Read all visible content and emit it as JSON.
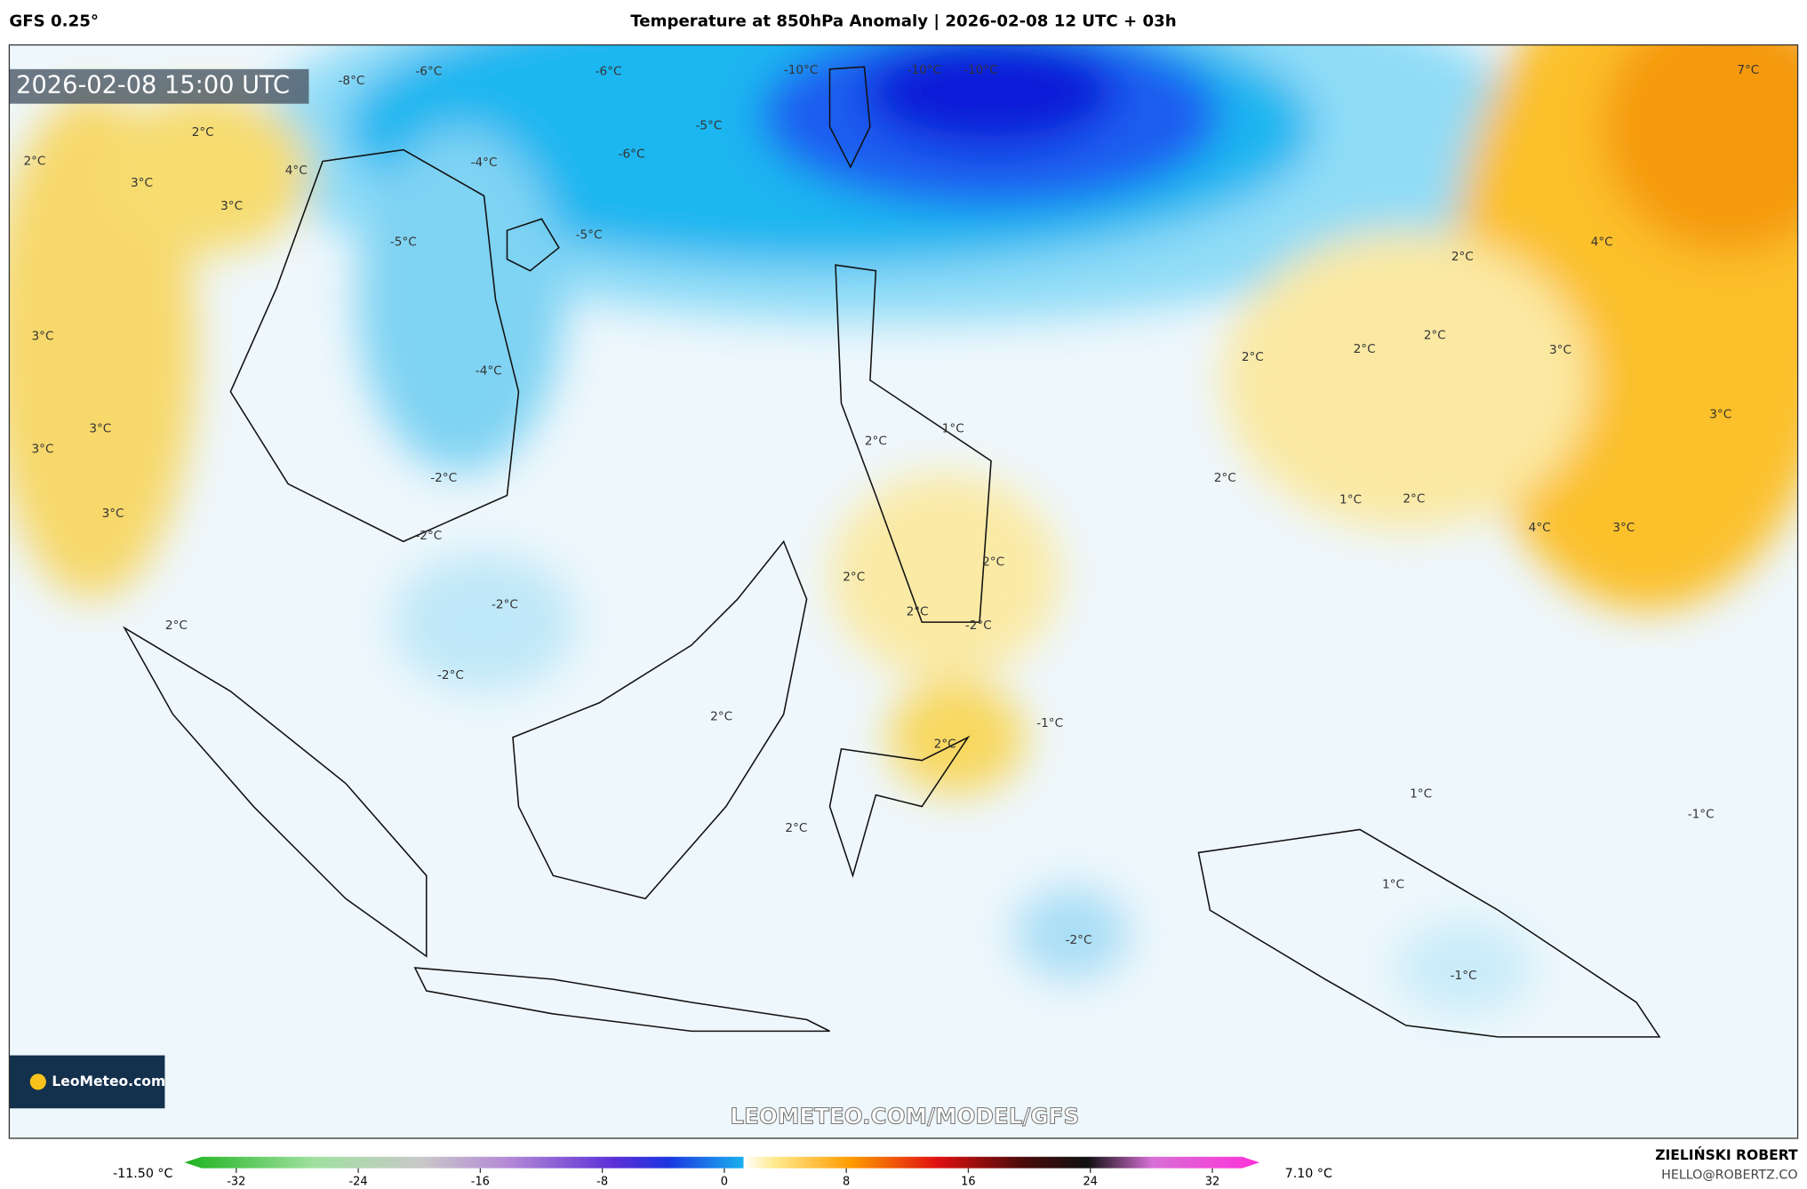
{
  "header": {
    "model": "GFS 0.25°",
    "title": "Temperature at 850hPa Anomaly | 2026-02-08 12 UTC + 03h"
  },
  "map": {
    "timestamp": "2026-02-08 15:00 UTC",
    "watermark": "LEOMETEO.COM/MODEL/GFS",
    "logo": "LeoMeteo.com",
    "labels": [
      "-8°C",
      "-6°C",
      "-6°C",
      "-10°C",
      "-10°C",
      "-10°C",
      "7°C",
      "2°C",
      "2°C",
      "3°C",
      "4°C",
      "3°C",
      "-5°C",
      "-4°C",
      "-6°C",
      "-5°C",
      "-5°C",
      "2°C",
      "4°C",
      "3°C",
      "2°C",
      "2°C",
      "2°C",
      "3°C",
      "-4°C",
      "3°C",
      "3°C",
      "3°C",
      "2°C",
      "1°C",
      "3°C",
      "2°C",
      "-2°C",
      "1°C",
      "2°C",
      "4°C",
      "3°C",
      "-2°C",
      "2°C",
      "2°C",
      "2°C",
      "-2°C",
      "2°C",
      "-2°C",
      "-2°C",
      "2°C",
      "-1°C",
      "2°C",
      "1°C",
      "-1°C",
      "2°C",
      "1°C",
      "-2°C",
      "-1°C"
    ]
  },
  "colorbar": {
    "min": "-11.50 °C",
    "max": "7.10 °C",
    "ticks": [
      -32,
      -24,
      -16,
      -8,
      0,
      8,
      16,
      24,
      32
    ]
  },
  "credits": {
    "author": "ZIELIŃSKI ROBERT",
    "email": "HELLO@ROBERTZ.CO"
  }
}
